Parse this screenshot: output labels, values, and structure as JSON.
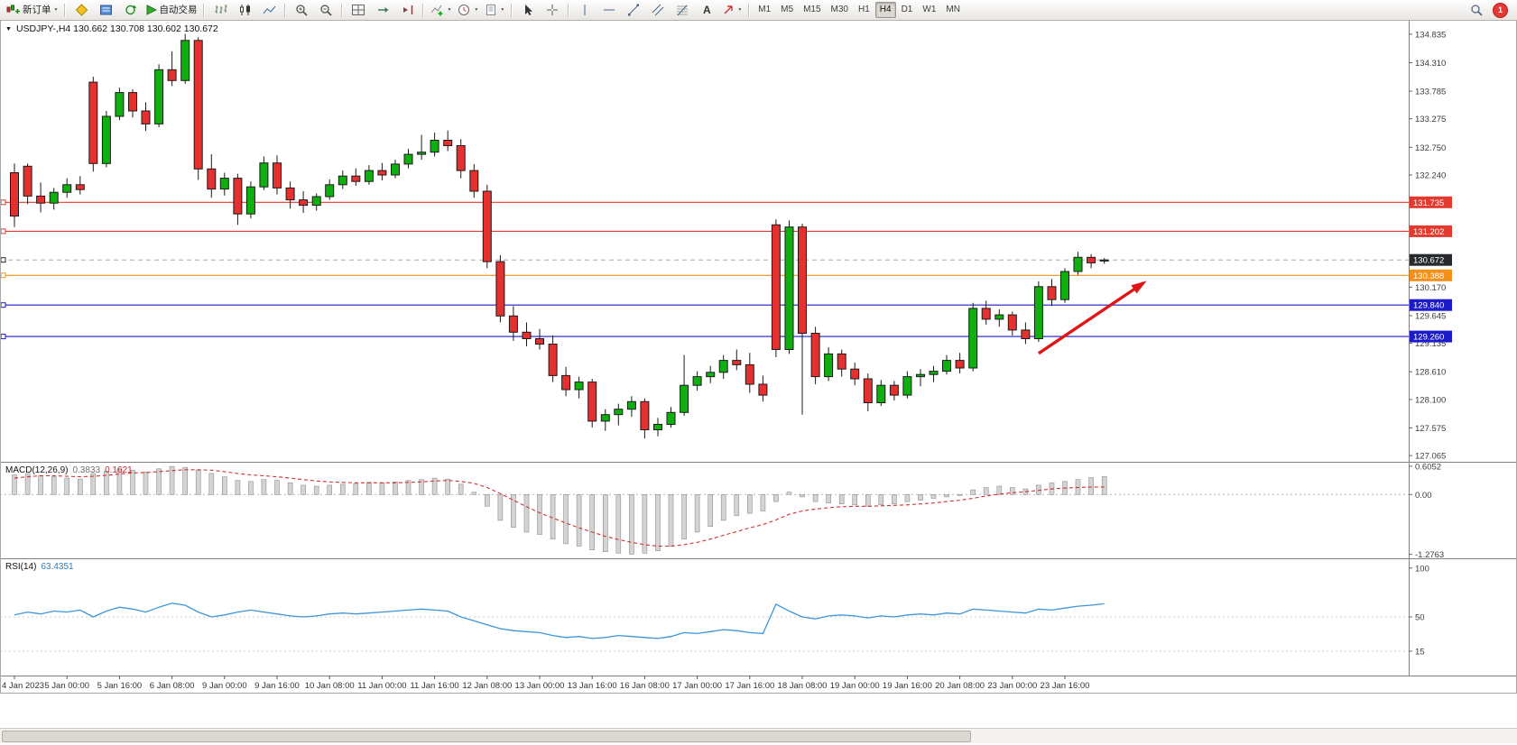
{
  "toolbar": {
    "new_order_label": "新订单",
    "autotrading_label": "自动交易",
    "timeframes": [
      "M1",
      "M5",
      "M15",
      "M30",
      "H1",
      "H4",
      "D1",
      "W1",
      "MN"
    ],
    "active_timeframe": "H4",
    "notification_count": "1"
  },
  "icons": {
    "dropdown_glyph": "▼",
    "collapse_glyph": "▼"
  },
  "chart": {
    "title": "USDJPY-,H4 130.662 130.708 130.602 130.672",
    "symbol": "USDJPY-",
    "period": "H4",
    "open": "130.662",
    "high": "130.708",
    "low": "130.602",
    "close": "130.672"
  },
  "price_axis": {
    "ticks": [
      "134.835",
      "134.310",
      "133.785",
      "133.275",
      "132.750",
      "132.240",
      "131.715",
      "130.170",
      "129.645",
      "129.135",
      "128.610",
      "128.100",
      "127.575",
      "127.065"
    ]
  },
  "hlines": [
    {
      "price": 131.735,
      "label": "131.735",
      "color": "#e23a2e",
      "kind": "resistance-line-1"
    },
    {
      "price": 131.202,
      "label": "131.202",
      "color": "#e23a2e",
      "kind": "resistance-line-2"
    },
    {
      "price": 130.672,
      "label": "130.672",
      "color": "#26292e",
      "kind": "bid-price-line",
      "dashed": true
    },
    {
      "price": 130.388,
      "label": "130.388",
      "color": "#f29018",
      "kind": "pivot-line"
    },
    {
      "price": 129.84,
      "label": "129.840",
      "color": "#1b1bc8",
      "kind": "support-line-1"
    },
    {
      "price": 129.26,
      "label": "129.260",
      "color": "#1b1bc8",
      "kind": "support-line-2"
    }
  ],
  "time_axis": [
    "4 Jan 2023",
    "5 Jan 00:00",
    "5 Jan 16:00",
    "6 Jan 08:00",
    "9 Jan 00:00",
    "9 Jan 16:00",
    "10 Jan 08:00",
    "11 Jan 00:00",
    "11 Jan 16:00",
    "12 Jan 08:00",
    "13 Jan 00:00",
    "13 Jan 16:00",
    "16 Jan 08:00",
    "17 Jan 00:00",
    "17 Jan 16:00",
    "18 Jan 08:00",
    "19 Jan 00:00",
    "19 Jan 16:00",
    "20 Jan 08:00",
    "23 Jan 00:00",
    "23 Jan 16:00"
  ],
  "annotation_arrow": {
    "from_index": 78,
    "from_price": 128.95,
    "to_index": 86,
    "to_price": 130.25,
    "color": "#e01515"
  },
  "chart_data": {
    "type": "candlestick",
    "symbol": "USDJPY-",
    "timeframe": "H4",
    "price_range": [
      127.065,
      134.835
    ],
    "colors": {
      "bull": "#0faf0f",
      "bear": "#e53030",
      "wick": "#1b1b1b",
      "candle_border": "#1b1b1b",
      "background": "#ffffff"
    },
    "candles": {
      "o": [
        132.28,
        132.4,
        131.85,
        131.72,
        131.92,
        132.06,
        133.95,
        132.45,
        133.32,
        133.76,
        133.42,
        133.18,
        134.18,
        133.98,
        134.72,
        132.35,
        131.98,
        132.18,
        131.52,
        132.02,
        132.46,
        132.0,
        131.78,
        131.68,
        131.84,
        132.06,
        132.22,
        132.12,
        132.32,
        132.24,
        132.44,
        132.62,
        132.66,
        132.88,
        132.78,
        132.32,
        131.94,
        130.64,
        129.64,
        129.34,
        129.22,
        129.12,
        128.54,
        128.28,
        128.42,
        127.7,
        127.82,
        127.92,
        128.06,
        127.54,
        127.64,
        127.86,
        128.36,
        128.52,
        128.6,
        128.82,
        128.74,
        128.38,
        131.32,
        129.02,
        131.28,
        129.32,
        128.52,
        128.94,
        128.66,
        128.48,
        128.04,
        128.36,
        128.18,
        128.52,
        128.56,
        128.62,
        128.82,
        128.68,
        129.78,
        129.58,
        129.66,
        129.38,
        129.22,
        130.18,
        129.94,
        130.46,
        130.72,
        130.662
      ],
      "h": [
        132.45,
        132.45,
        132.1,
        132.0,
        132.18,
        132.22,
        134.05,
        133.42,
        133.85,
        133.82,
        133.58,
        134.28,
        134.52,
        134.84,
        134.78,
        132.62,
        132.28,
        132.26,
        132.12,
        132.58,
        132.6,
        132.12,
        131.94,
        131.9,
        132.16,
        132.32,
        132.36,
        132.42,
        132.46,
        132.52,
        132.72,
        132.98,
        133.02,
        133.06,
        132.9,
        132.44,
        132.06,
        130.76,
        129.82,
        129.52,
        129.4,
        129.28,
        128.7,
        128.52,
        128.48,
        127.92,
        128.02,
        128.16,
        128.12,
        127.76,
        127.96,
        128.92,
        128.62,
        128.72,
        128.92,
        129.02,
        128.96,
        128.54,
        131.42,
        131.4,
        131.34,
        129.44,
        129.06,
        129.02,
        128.78,
        128.58,
        128.46,
        128.44,
        128.62,
        128.66,
        128.72,
        128.92,
        128.96,
        129.88,
        129.92,
        129.76,
        129.72,
        129.52,
        130.28,
        130.32,
        130.52,
        130.82,
        130.78,
        130.708
      ],
      "l": [
        131.28,
        131.7,
        131.55,
        131.6,
        131.82,
        131.88,
        132.3,
        132.38,
        133.25,
        133.3,
        133.05,
        133.12,
        133.88,
        133.92,
        132.15,
        131.82,
        131.86,
        131.32,
        131.44,
        131.96,
        131.88,
        131.62,
        131.54,
        131.58,
        131.78,
        131.98,
        132.04,
        132.06,
        132.14,
        132.18,
        132.36,
        132.52,
        132.58,
        132.68,
        132.18,
        131.82,
        130.52,
        129.52,
        129.18,
        129.08,
        129.02,
        128.42,
        128.16,
        128.12,
        127.58,
        127.52,
        127.62,
        127.78,
        127.38,
        127.42,
        127.58,
        127.8,
        128.26,
        128.4,
        128.48,
        128.64,
        128.22,
        128.06,
        128.88,
        128.94,
        127.82,
        128.38,
        128.44,
        128.52,
        128.36,
        127.88,
        127.98,
        128.08,
        128.12,
        128.34,
        128.42,
        128.56,
        128.58,
        128.62,
        129.48,
        129.44,
        129.28,
        129.12,
        129.16,
        129.82,
        129.88,
        130.4,
        130.52,
        130.602
      ],
      "c": [
        131.48,
        131.85,
        131.72,
        131.92,
        132.06,
        131.97,
        132.45,
        133.32,
        133.76,
        133.42,
        133.18,
        134.18,
        133.98,
        134.72,
        132.35,
        131.98,
        132.18,
        131.52,
        132.02,
        132.46,
        132.0,
        131.78,
        131.68,
        131.84,
        132.06,
        132.22,
        132.12,
        132.32,
        132.24,
        132.44,
        132.62,
        132.66,
        132.88,
        132.78,
        132.32,
        131.94,
        130.64,
        129.64,
        129.34,
        129.22,
        129.12,
        128.54,
        128.28,
        128.42,
        127.7,
        127.82,
        127.92,
        128.06,
        127.54,
        127.64,
        127.86,
        128.36,
        128.52,
        128.6,
        128.82,
        128.74,
        128.38,
        128.18,
        129.02,
        131.28,
        129.32,
        128.52,
        128.94,
        128.66,
        128.48,
        128.04,
        128.36,
        128.18,
        128.52,
        128.56,
        128.62,
        128.82,
        128.68,
        129.78,
        129.58,
        129.66,
        129.38,
        129.22,
        130.18,
        129.94,
        130.46,
        130.72,
        130.62,
        130.672
      ]
    },
    "macd": {
      "name": "MACD(12,26,9)",
      "value_main": "0.3833",
      "value_signal": "0.1621",
      "axis": [
        "0.6052",
        "0.00",
        "-1.2763"
      ],
      "hist_fill": "#d4d4d4",
      "hist_stroke": "#8f8f8f",
      "signal_color": "#d32f2f",
      "hist": [
        0.42,
        0.45,
        0.4,
        0.38,
        0.35,
        0.33,
        0.45,
        0.5,
        0.55,
        0.52,
        0.48,
        0.55,
        0.6,
        0.58,
        0.52,
        0.45,
        0.38,
        0.3,
        0.28,
        0.32,
        0.3,
        0.25,
        0.2,
        0.18,
        0.2,
        0.22,
        0.24,
        0.26,
        0.25,
        0.27,
        0.3,
        0.32,
        0.35,
        0.33,
        0.22,
        0.05,
        -0.25,
        -0.55,
        -0.7,
        -0.8,
        -0.85,
        -0.95,
        -1.05,
        -1.1,
        -1.18,
        -1.22,
        -1.25,
        -1.27,
        -1.25,
        -1.2,
        -1.1,
        -0.95,
        -0.8,
        -0.68,
        -0.55,
        -0.45,
        -0.4,
        -0.35,
        -0.15,
        0.05,
        -0.05,
        -0.15,
        -0.18,
        -0.2,
        -0.22,
        -0.25,
        -0.22,
        -0.2,
        -0.15,
        -0.12,
        -0.08,
        -0.05,
        0.0,
        0.1,
        0.15,
        0.18,
        0.15,
        0.12,
        0.2,
        0.25,
        0.28,
        0.32,
        0.36,
        0.3833
      ],
      "signal": [
        0.35,
        0.38,
        0.4,
        0.4,
        0.39,
        0.38,
        0.39,
        0.41,
        0.44,
        0.46,
        0.47,
        0.49,
        0.51,
        0.53,
        0.53,
        0.52,
        0.49,
        0.45,
        0.42,
        0.4,
        0.38,
        0.35,
        0.32,
        0.29,
        0.27,
        0.26,
        0.25,
        0.25,
        0.25,
        0.25,
        0.26,
        0.27,
        0.29,
        0.3,
        0.28,
        0.24,
        0.15,
        0.02,
        -0.12,
        -0.26,
        -0.39,
        -0.5,
        -0.61,
        -0.71,
        -0.8,
        -0.89,
        -0.96,
        -1.02,
        -1.07,
        -1.1,
        -1.1,
        -1.07,
        -1.02,
        -0.95,
        -0.87,
        -0.79,
        -0.71,
        -0.64,
        -0.54,
        -0.42,
        -0.35,
        -0.31,
        -0.28,
        -0.26,
        -0.25,
        -0.25,
        -0.24,
        -0.23,
        -0.22,
        -0.2,
        -0.18,
        -0.15,
        -0.12,
        -0.08,
        -0.03,
        0.01,
        0.04,
        0.06,
        0.09,
        0.12,
        0.14,
        0.15,
        0.16,
        0.1621
      ]
    },
    "rsi": {
      "name": "RSI(14)",
      "value": "63.4351",
      "axis": [
        "100",
        "50",
        "15"
      ],
      "color": "#3d96d9",
      "values": [
        52,
        55,
        53,
        56,
        55,
        57,
        50,
        56,
        60,
        58,
        55,
        60,
        64,
        62,
        55,
        50,
        52,
        55,
        57,
        55,
        53,
        51,
        50,
        51,
        53,
        54,
        53,
        54,
        55,
        56,
        57,
        58,
        57,
        56,
        50,
        46,
        42,
        38,
        36,
        35,
        34,
        31,
        29,
        30,
        28,
        29,
        31,
        30,
        29,
        28,
        30,
        34,
        33,
        35,
        37,
        36,
        34,
        33,
        63,
        56,
        50,
        48,
        51,
        52,
        51,
        49,
        51,
        50,
        52,
        53,
        52,
        54,
        53,
        58,
        57,
        56,
        55,
        54,
        58,
        57,
        59,
        61,
        62,
        63.4351
      ]
    }
  }
}
